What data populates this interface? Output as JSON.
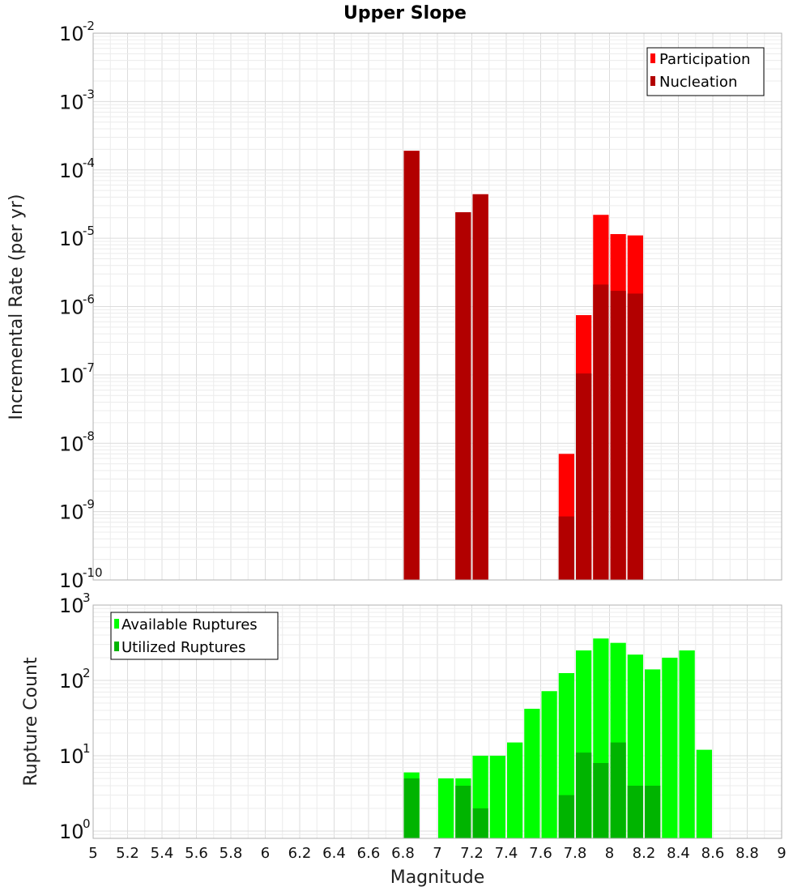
{
  "chart_data": [
    {
      "type": "bar",
      "title": "Upper Slope",
      "xlabel": "",
      "ylabel": "Incremental Rate (per yr)",
      "xlim": [
        5,
        9
      ],
      "ylim": [
        1e-10,
        0.01
      ],
      "yscale": "log",
      "bar_width": 0.1,
      "grid": true,
      "legend_position": "top-right",
      "series": [
        {
          "name": "Participation",
          "color": "#ff0000",
          "x": [
            6.85,
            7.15,
            7.25,
            7.75,
            7.85,
            7.95,
            8.05,
            8.15
          ],
          "values": [
            0.00019,
            2.4e-05,
            4.4e-05,
            7e-09,
            7.5e-07,
            2.2e-05,
            1.15e-05,
            1.1e-05
          ]
        },
        {
          "name": "Nucleation",
          "color": "#b20000",
          "x": [
            6.85,
            7.15,
            7.25,
            7.75,
            7.85,
            7.95,
            8.05,
            8.15
          ],
          "values": [
            0.00019,
            2.4e-05,
            4.4e-05,
            8.5e-10,
            1.05e-07,
            2.1e-06,
            1.7e-06,
            1.55e-06
          ]
        }
      ],
      "y_ticks": [
        {
          "base": "10",
          "exp": "-10"
        },
        {
          "base": "10",
          "exp": "-9"
        },
        {
          "base": "10",
          "exp": "-8"
        },
        {
          "base": "10",
          "exp": "-7"
        },
        {
          "base": "10",
          "exp": "-6"
        },
        {
          "base": "10",
          "exp": "-5"
        },
        {
          "base": "10",
          "exp": "-4"
        },
        {
          "base": "10",
          "exp": "-3"
        },
        {
          "base": "10",
          "exp": "-2"
        }
      ]
    },
    {
      "type": "bar",
      "title": "",
      "xlabel": "Magnitude",
      "ylabel": "Rupture Count",
      "xlim": [
        5,
        9
      ],
      "ylim": [
        0.8,
        1000
      ],
      "yscale": "log",
      "bar_width": 0.1,
      "grid": true,
      "legend_position": "top-left",
      "series": [
        {
          "name": "Available Ruptures",
          "color": "#00ff00",
          "x": [
            6.85,
            7.05,
            7.15,
            7.25,
            7.35,
            7.45,
            7.55,
            7.65,
            7.75,
            7.85,
            7.95,
            8.05,
            8.15,
            8.25,
            8.35,
            8.45,
            8.55
          ],
          "values": [
            6,
            5,
            5,
            10,
            10,
            15,
            42,
            72,
            125,
            250,
            360,
            315,
            220,
            140,
            200,
            250,
            12
          ]
        },
        {
          "name": "Utilized Ruptures",
          "color": "#00b400",
          "x": [
            6.85,
            7.15,
            7.25,
            7.75,
            7.85,
            7.95,
            8.05,
            8.15,
            8.25
          ],
          "values": [
            5,
            4,
            2,
            3,
            11,
            8,
            15,
            4,
            4
          ]
        }
      ],
      "x_ticks": [
        "5",
        "5.2",
        "5.4",
        "5.6",
        "5.8",
        "6",
        "6.2",
        "6.4",
        "6.6",
        "6.8",
        "7",
        "7.2",
        "7.4",
        "7.6",
        "7.8",
        "8",
        "8.2",
        "8.4",
        "8.6",
        "8.8",
        "9"
      ],
      "y_ticks": [
        {
          "base": "10",
          "exp": "0"
        },
        {
          "base": "10",
          "exp": "1"
        },
        {
          "base": "10",
          "exp": "2"
        },
        {
          "base": "10",
          "exp": "3"
        }
      ]
    }
  ]
}
